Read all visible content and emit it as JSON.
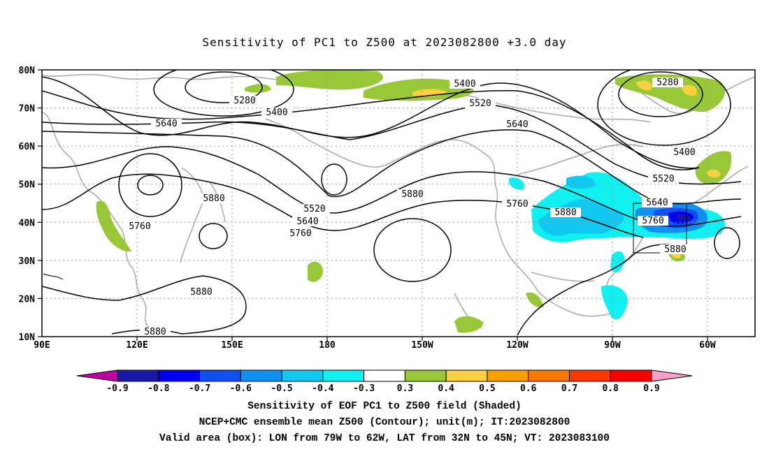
{
  "title": "Sensitivity of PC1 to Z500 at 2023082800 +3.0 day",
  "lat_labels": [
    "80N",
    "70N",
    "60N",
    "50N",
    "40N",
    "30N",
    "20N",
    "10N"
  ],
  "lon_labels": [
    "90E",
    "120E",
    "150E",
    "180",
    "150W",
    "120W",
    "90W",
    "60W"
  ],
  "contour_labels": [
    {
      "text": "5280",
      "id": "c5280a"
    },
    {
      "text": "5400",
      "id": "c5400a"
    },
    {
      "text": "5640",
      "id": "c5640a"
    },
    {
      "text": "5400",
      "id": "c5400b"
    },
    {
      "text": "5520",
      "id": "c5520a"
    },
    {
      "text": "5640",
      "id": "c5640b"
    },
    {
      "text": "5280",
      "id": "c5280b"
    },
    {
      "text": "5400",
      "id": "c5400c"
    },
    {
      "text": "5520",
      "id": "c5520b"
    },
    {
      "text": "5880",
      "id": "c5880a"
    },
    {
      "text": "5760",
      "id": "c5760a"
    },
    {
      "text": "5520",
      "id": "c5520c"
    },
    {
      "text": "5640",
      "id": "c5640c"
    },
    {
      "text": "5760",
      "id": "c5760b"
    },
    {
      "text": "5880",
      "id": "c5880b"
    },
    {
      "text": "5760",
      "id": "c5760c"
    },
    {
      "text": "5880",
      "id": "c5880c"
    },
    {
      "text": "5640",
      "id": "c5640d"
    },
    {
      "text": "5760",
      "id": "c5760d"
    },
    {
      "text": "5880",
      "id": "c5880d"
    },
    {
      "text": "5880",
      "id": "c5880e"
    },
    {
      "text": "5880",
      "id": "c5880f"
    }
  ],
  "colorbar": {
    "labels": [
      "-0.9",
      "-0.8",
      "-0.7",
      "-0.6",
      "-0.5",
      "-0.4",
      "-0.3",
      "0.3",
      "0.4",
      "0.5",
      "0.6",
      "0.7",
      "0.8",
      "0.9"
    ],
    "colors": [
      "#c000a0",
      "#1818a8",
      "#0000f0",
      "#1050f0",
      "#1090f0",
      "#10c8f0",
      "#10f0f0",
      "#ffffff",
      "#98c838",
      "#f8d040",
      "#f8a000",
      "#f87800",
      "#f83800",
      "#f80000",
      "#f8a0c8"
    ]
  },
  "captions": [
    "Sensitivity of EOF PC1 to Z500 field (Shaded)",
    "NCEP+CMC ensemble mean Z500 (Contour); unit(m); IT:2023082800",
    "Valid area (box): LON from 79W to 62W, LAT from 32N to 45N; VT: 2023083100"
  ]
}
